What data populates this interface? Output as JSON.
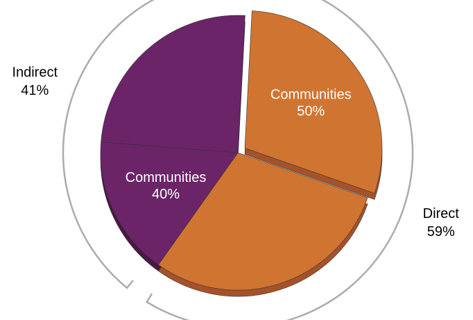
{
  "chart_data": {
    "type": "pie",
    "start_angle": 3,
    "groups": [
      {
        "name": "Direct",
        "value": 59,
        "value_label": "59%",
        "color": "#d07431",
        "shade": "#a5522a",
        "slices": {
          "names": [
            "Communities",
            null
          ],
          "values": [
            50,
            50
          ],
          "value_labels": [
            "50%",
            null
          ],
          "explode": [
            true,
            false
          ]
        }
      },
      {
        "name": "Indirect",
        "value": 41,
        "value_label": "41%",
        "color": "#6b2468",
        "shade": "#4a1746",
        "slices": {
          "names": [
            "Communities",
            null
          ],
          "values": [
            40,
            60
          ],
          "value_labels": [
            "40%",
            null
          ],
          "explode": [
            false,
            false
          ]
        }
      }
    ]
  }
}
